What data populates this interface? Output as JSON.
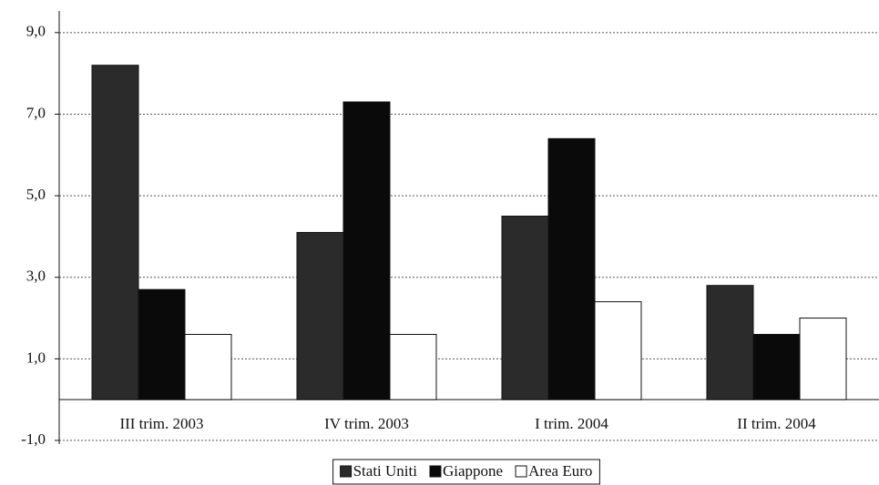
{
  "chart_data": {
    "type": "bar",
    "categories": [
      "III trim. 2003",
      "IV trim. 2003",
      "I trim. 2004",
      "II trim. 2004"
    ],
    "series": [
      {
        "name": "Stati Uniti",
        "color": "#2b2b2b",
        "values": [
          8.2,
          4.1,
          4.5,
          2.8
        ]
      },
      {
        "name": "Giappone",
        "color": "#0a0a0a",
        "values": [
          2.7,
          7.3,
          6.4,
          1.6
        ]
      },
      {
        "name": "Area Euro",
        "color": "#ffffff",
        "values": [
          1.6,
          1.6,
          2.4,
          2.0
        ]
      }
    ],
    "ylim": [
      -1,
      9.9
    ],
    "yticks": [
      {
        "value": -1,
        "label": "-1,0"
      },
      {
        "value": 1,
        "label": "1,0"
      },
      {
        "value": 3,
        "label": "3,0"
      },
      {
        "value": 5,
        "label": "5,0"
      },
      {
        "value": 7,
        "label": "7,0"
      },
      {
        "value": 9,
        "label": "9,0"
      }
    ],
    "grid": true,
    "legend": "bottom"
  }
}
